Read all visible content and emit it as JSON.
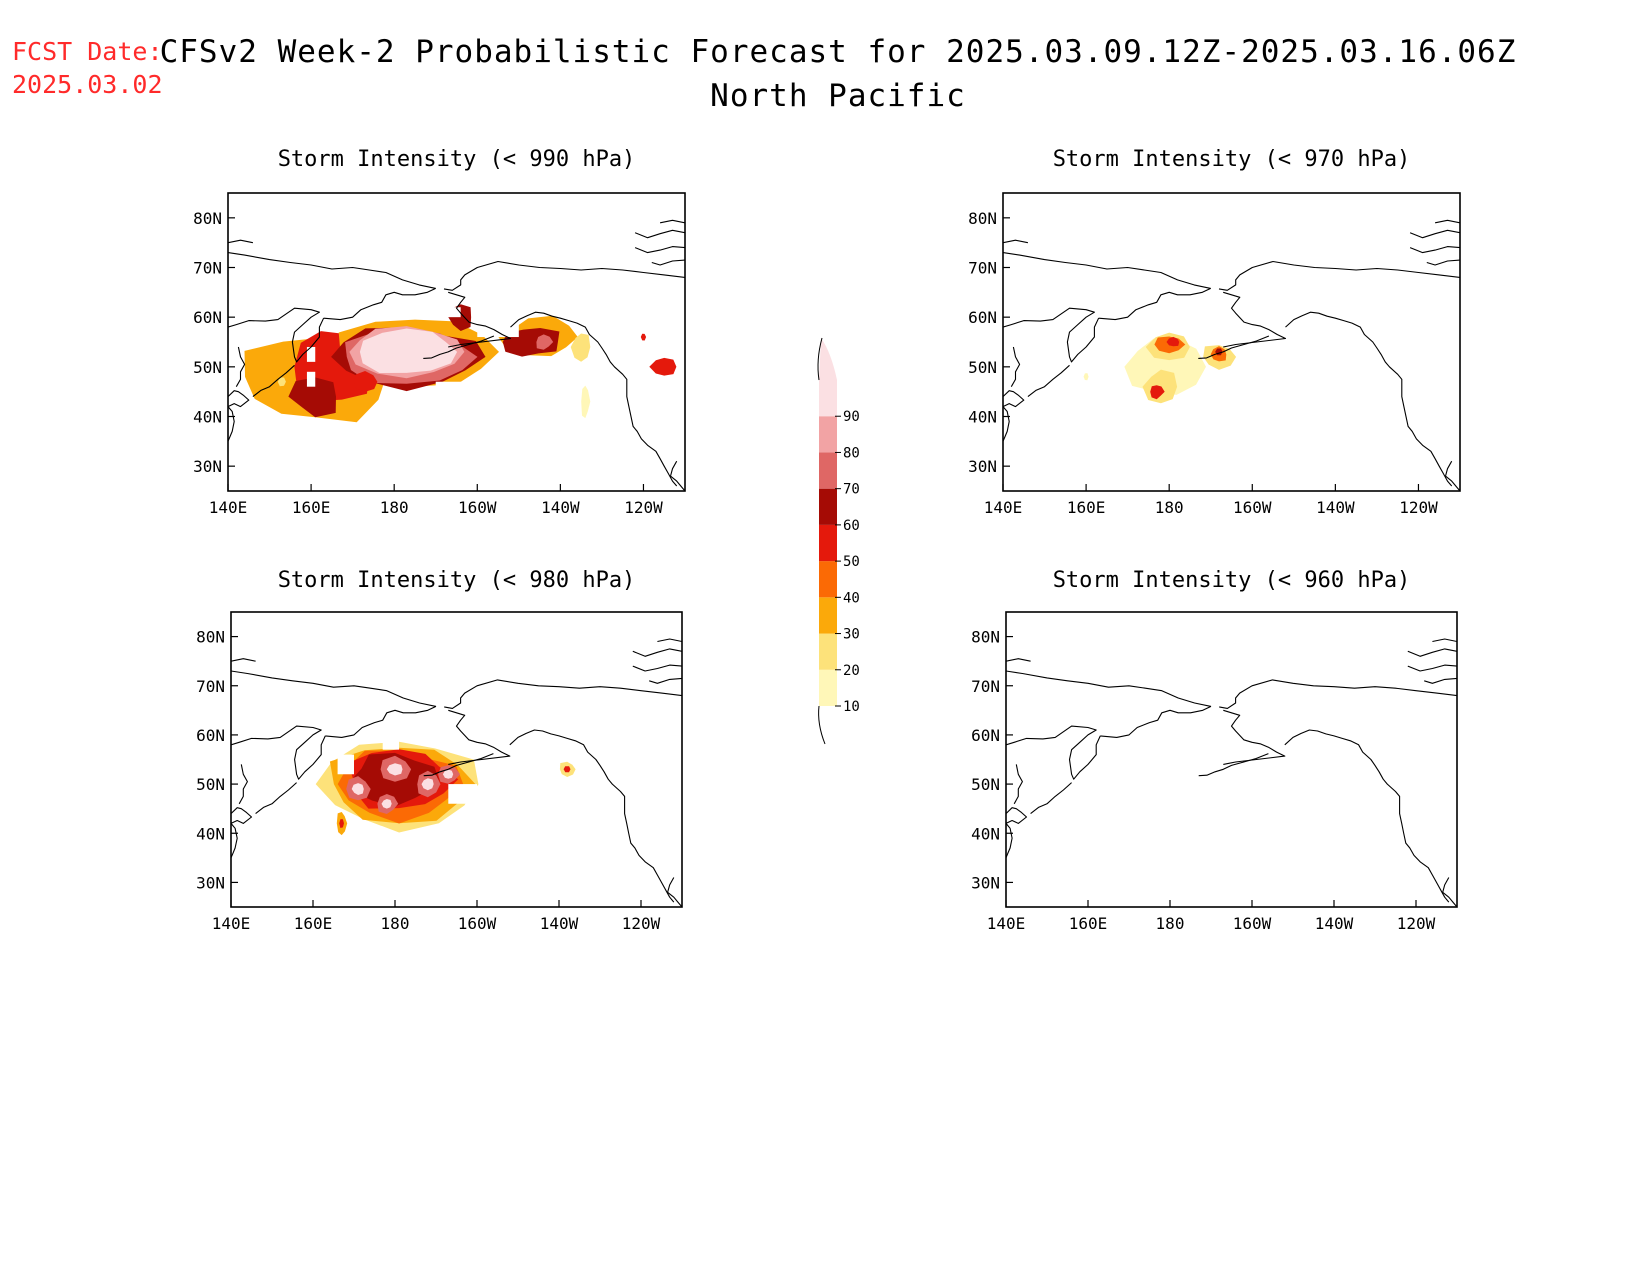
{
  "header": {
    "fcst_label": "FCST Date:",
    "fcst_date": "2025.03.02",
    "title": "CFSv2 Week-2 Probabilistic Forecast for 2025.03.09.12Z-2025.03.16.06Z",
    "subtitle": "North Pacific"
  },
  "colors": {
    "10": "#fff7b8",
    "20": "#fde27a",
    "30": "#fba90a",
    "40": "#fb6a05",
    "50": "#e4190c",
    "60": "#a50b05",
    "70": "#df6765",
    "80": "#f2a3a4",
    "90": "#fbe0e3"
  },
  "colorbar": {
    "labels": [
      "10",
      "20",
      "30",
      "40",
      "50",
      "60",
      "70",
      "80",
      "90"
    ]
  },
  "axes": {
    "x_ticks": [
      "140E",
      "160E",
      "180",
      "160W",
      "140W",
      "120W"
    ],
    "y_ticks": [
      "30N",
      "40N",
      "50N",
      "60N",
      "70N",
      "80N"
    ],
    "lon_range": [
      140,
      250
    ],
    "lat_range": [
      25,
      85
    ]
  },
  "panels": [
    {
      "id": "p990",
      "title": "Storm Intensity (< 990 hPa)",
      "blobs": [
        {
          "lon": 161,
          "lat": 48,
          "rlon": 17,
          "rlat": 9,
          "c": "30",
          "n": 12,
          "irr": 0.2
        },
        {
          "lon": 165,
          "lat": 50,
          "rlon": 9,
          "rlat": 8,
          "c": "50",
          "n": 10,
          "irr": 0.2
        },
        {
          "lon": 185,
          "lat": 53,
          "rlon": 19,
          "rlat": 7,
          "c": "30",
          "n": 12,
          "irr": 0.12
        },
        {
          "lon": 183,
          "lat": 52,
          "rlon": 18,
          "rlat": 6,
          "c": "60",
          "n": 12,
          "irr": 0.15
        },
        {
          "lon": 183,
          "lat": 52,
          "rlon": 16,
          "rlat": 5.5,
          "c": "70",
          "n": 12,
          "irr": 0.12
        },
        {
          "lon": 183,
          "lat": 53,
          "rlon": 14,
          "rlat": 5,
          "c": "80",
          "n": 12,
          "irr": 0.1
        },
        {
          "lon": 183,
          "lat": 53,
          "rlon": 12,
          "rlat": 4.5,
          "c": "90",
          "n": 12,
          "irr": 0.1
        },
        {
          "lon": 161,
          "lat": 44,
          "rlon": 6,
          "rlat": 4,
          "c": "60",
          "n": 8,
          "irr": 0.25
        },
        {
          "lon": 173,
          "lat": 47,
          "rlon": 3,
          "rlat": 2,
          "c": "50",
          "n": 8,
          "irr": 0.1
        },
        {
          "lon": 196,
          "lat": 60,
          "rlon": 3,
          "rlat": 2.5,
          "c": "60",
          "n": 8,
          "irr": 0.2
        },
        {
          "lon": 215,
          "lat": 56,
          "rlon": 9,
          "rlat": 4,
          "c": "30",
          "n": 10,
          "irr": 0.2
        },
        {
          "lon": 213,
          "lat": 55,
          "rlon": 7,
          "rlat": 3,
          "c": "60",
          "n": 10,
          "irr": 0.2
        },
        {
          "lon": 216,
          "lat": 55,
          "rlon": 2,
          "rlat": 1.5,
          "c": "70",
          "n": 8,
          "irr": 0.2
        },
        {
          "lon": 225,
          "lat": 54,
          "rlon": 2.2,
          "rlat": 3,
          "c": "20",
          "n": 8,
          "irr": 0.2
        },
        {
          "lon": 226,
          "lat": 43,
          "rlon": 1,
          "rlat": 3.5,
          "c": "10",
          "n": 8,
          "irr": 0.2
        },
        {
          "lon": 245,
          "lat": 50,
          "rlon": 3,
          "rlat": 2,
          "c": "50",
          "n": 8,
          "irr": 0.2
        },
        {
          "lon": 240,
          "lat": 56,
          "rlon": 0.6,
          "rlat": 0.8,
          "c": "50",
          "n": 6,
          "irr": 0.1
        },
        {
          "lon": 153,
          "lat": 47,
          "rlon": 1,
          "rlat": 1,
          "c": "20",
          "n": 6,
          "irr": 0.1
        }
      ],
      "cells": [
        {
          "lon0": 159,
          "lat0": 51,
          "lon1": 161,
          "lat1": 54
        },
        {
          "lon0": 159,
          "lat0": 46,
          "lon1": 161,
          "lat1": 49
        },
        {
          "lon0": 180,
          "lat0": 37,
          "lon1": 185,
          "lat1": 40
        },
        {
          "lon0": 190,
          "lat0": 43,
          "lon1": 200,
          "lat1": 47
        },
        {
          "lon0": 200,
          "lat0": 56,
          "lon1": 210,
          "lat1": 62
        },
        {
          "lon0": 160,
          "lat0": 36,
          "lon1": 172,
          "lat1": 38
        },
        {
          "lon0": 178,
          "lat0": 60,
          "lon1": 196,
          "lat1": 62
        }
      ]
    },
    {
      "id": "p970",
      "title": "Storm Intensity (< 970 hPa)",
      "blobs": [
        {
          "lon": 179,
          "lat": 50,
          "rlon": 9,
          "rlat": 6,
          "c": "10",
          "n": 10,
          "irr": 0.15
        },
        {
          "lon": 178,
          "lat": 46,
          "rlon": 4,
          "rlat": 3.5,
          "c": "20",
          "n": 8,
          "irr": 0.2
        },
        {
          "lon": 177,
          "lat": 45,
          "rlon": 1.6,
          "rlat": 1.5,
          "c": "50",
          "n": 8,
          "irr": 0.2
        },
        {
          "lon": 180,
          "lat": 54,
          "rlon": 5,
          "rlat": 3,
          "c": "20",
          "n": 8,
          "irr": 0.15
        },
        {
          "lon": 180,
          "lat": 54.5,
          "rlon": 3.5,
          "rlat": 1.8,
          "c": "40",
          "n": 8,
          "irr": 0.15
        },
        {
          "lon": 181,
          "lat": 55,
          "rlon": 1.5,
          "rlat": 1,
          "c": "50",
          "n": 8,
          "irr": 0.15
        },
        {
          "lon": 192,
          "lat": 52,
          "rlon": 4,
          "rlat": 2.5,
          "c": "20",
          "n": 8,
          "irr": 0.2
        },
        {
          "lon": 192,
          "lat": 52.5,
          "rlon": 2,
          "rlat": 1.5,
          "c": "40",
          "n": 8,
          "irr": 0.15
        },
        {
          "lon": 192,
          "lat": 53,
          "rlon": 0.9,
          "rlat": 0.8,
          "c": "60",
          "n": 6,
          "irr": 0.1
        },
        {
          "lon": 172,
          "lat": 50,
          "rlon": 0.7,
          "rlat": 0.6,
          "c": "10",
          "n": 6,
          "irr": 0.1
        },
        {
          "lon": 160,
          "lat": 48,
          "rlon": 0.6,
          "rlat": 0.8,
          "c": "10",
          "n": 6,
          "irr": 0.1
        }
      ],
      "cells": []
    },
    {
      "id": "p980",
      "title": "Storm Intensity (< 980 hPa)",
      "blobs": [
        {
          "lon": 181,
          "lat": 50,
          "rlon": 19,
          "rlat": 9,
          "c": "20",
          "n": 12,
          "irr": 0.12
        },
        {
          "lon": 181,
          "lat": 50,
          "rlon": 17,
          "rlat": 8,
          "c": "30",
          "n": 12,
          "irr": 0.15
        },
        {
          "lon": 181,
          "lat": 50,
          "rlon": 15,
          "rlat": 7,
          "c": "40",
          "n": 12,
          "irr": 0.15
        },
        {
          "lon": 181,
          "lat": 51,
          "rlon": 13,
          "rlat": 6,
          "c": "50",
          "n": 12,
          "irr": 0.18
        },
        {
          "lon": 180,
          "lat": 51,
          "rlon": 11,
          "rlat": 5,
          "c": "60",
          "n": 12,
          "irr": 0.2
        },
        {
          "lon": 171,
          "lat": 49,
          "rlon": 3,
          "rlat": 2.5,
          "c": "70",
          "n": 8,
          "irr": 0.15
        },
        {
          "lon": 171,
          "lat": 49,
          "rlon": 1.5,
          "rlat": 1.2,
          "c": "90",
          "n": 8,
          "irr": 0.1
        },
        {
          "lon": 180,
          "lat": 53,
          "rlon": 4,
          "rlat": 2.5,
          "c": "70",
          "n": 8,
          "irr": 0.15
        },
        {
          "lon": 180,
          "lat": 53,
          "rlon": 2,
          "rlat": 1.2,
          "c": "90",
          "n": 8,
          "irr": 0.1
        },
        {
          "lon": 188,
          "lat": 50,
          "rlon": 3,
          "rlat": 2.5,
          "c": "70",
          "n": 8,
          "irr": 0.15
        },
        {
          "lon": 188,
          "lat": 50,
          "rlon": 1.5,
          "rlat": 1.2,
          "c": "90",
          "n": 8,
          "irr": 0.1
        },
        {
          "lon": 178,
          "lat": 46,
          "rlon": 2.5,
          "rlat": 2,
          "c": "70",
          "n": 8,
          "irr": 0.15
        },
        {
          "lon": 178,
          "lat": 46,
          "rlon": 1.2,
          "rlat": 1,
          "c": "90",
          "n": 8,
          "irr": 0.1
        },
        {
          "lon": 193,
          "lat": 52,
          "rlon": 2.5,
          "rlat": 2,
          "c": "70",
          "n": 8,
          "irr": 0.15
        },
        {
          "lon": 193,
          "lat": 52,
          "rlon": 1.2,
          "rlat": 1,
          "c": "90",
          "n": 8,
          "irr": 0.1
        },
        {
          "lon": 167,
          "lat": 42,
          "rlon": 1.2,
          "rlat": 2.5,
          "c": "30",
          "n": 8,
          "irr": 0.2
        },
        {
          "lon": 167,
          "lat": 42,
          "rlon": 0.6,
          "rlat": 1,
          "c": "50",
          "n": 6,
          "irr": 0.1
        },
        {
          "lon": 222,
          "lat": 53,
          "rlon": 2,
          "rlat": 1.5,
          "c": "20",
          "n": 8,
          "irr": 0.2
        },
        {
          "lon": 222,
          "lat": 53,
          "rlon": 0.9,
          "rlat": 0.7,
          "c": "50",
          "n": 6,
          "irr": 0.1
        }
      ],
      "cells": [
        {
          "lon0": 193,
          "lat0": 46,
          "lon1": 200,
          "lat1": 50
        },
        {
          "lon0": 177,
          "lat0": 57,
          "lon1": 181,
          "lat1": 60
        },
        {
          "lon0": 166,
          "lat0": 52,
          "lon1": 170,
          "lat1": 56
        }
      ]
    },
    {
      "id": "p960",
      "title": "Storm Intensity (< 960 hPa)",
      "blobs": [],
      "cells": []
    }
  ]
}
